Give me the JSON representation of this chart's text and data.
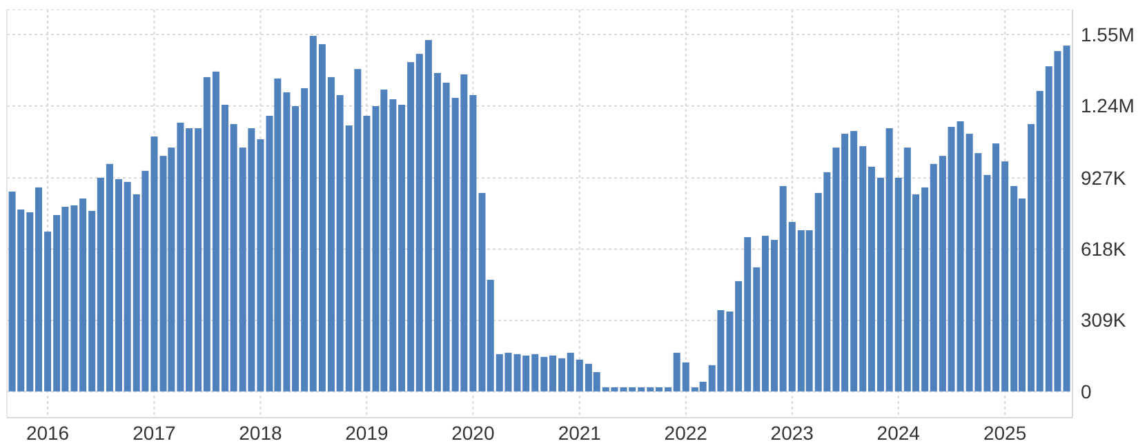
{
  "chart_data": {
    "type": "bar",
    "color": "#4f81bd",
    "x": [
      "2015-09",
      "2015-10",
      "2015-11",
      "2015-12",
      "2016-01",
      "2016-02",
      "2016-03",
      "2016-04",
      "2016-05",
      "2016-06",
      "2016-07",
      "2016-08",
      "2016-09",
      "2016-10",
      "2016-11",
      "2016-12",
      "2017-01",
      "2017-02",
      "2017-03",
      "2017-04",
      "2017-05",
      "2017-06",
      "2017-07",
      "2017-08",
      "2017-09",
      "2017-10",
      "2017-11",
      "2017-12",
      "2018-01",
      "2018-02",
      "2018-03",
      "2018-04",
      "2018-05",
      "2018-06",
      "2018-07",
      "2018-08",
      "2018-09",
      "2018-10",
      "2018-11",
      "2018-12",
      "2019-01",
      "2019-02",
      "2019-03",
      "2019-04",
      "2019-05",
      "2019-06",
      "2019-07",
      "2019-08",
      "2019-09",
      "2019-10",
      "2019-11",
      "2019-12",
      "2020-01",
      "2020-02",
      "2020-03",
      "2020-04",
      "2020-05",
      "2020-06",
      "2020-07",
      "2020-08",
      "2020-09",
      "2020-10",
      "2020-11",
      "2020-12",
      "2021-01",
      "2021-02",
      "2021-03",
      "2021-04",
      "2021-05",
      "2021-06",
      "2021-07",
      "2021-08",
      "2021-09",
      "2021-10",
      "2021-11",
      "2021-12",
      "2022-01",
      "2022-02",
      "2022-03",
      "2022-04",
      "2022-05",
      "2022-06",
      "2022-07",
      "2022-08",
      "2022-09",
      "2022-10",
      "2022-11",
      "2022-12",
      "2023-01",
      "2023-02",
      "2023-03",
      "2023-04",
      "2023-05",
      "2023-06",
      "2023-07",
      "2023-08",
      "2023-09",
      "2023-10",
      "2023-11",
      "2023-12",
      "2024-01",
      "2024-02",
      "2024-03",
      "2024-04",
      "2024-05",
      "2024-06",
      "2024-07",
      "2024-08",
      "2024-09",
      "2024-10",
      "2024-11",
      "2024-12",
      "2025-01",
      "2025-02",
      "2025-03",
      "2025-04",
      "2025-05",
      "2025-06",
      "2025-07",
      "2025-08"
    ],
    "values": [
      868000,
      790000,
      778000,
      886000,
      694000,
      766000,
      802000,
      808000,
      838000,
      784000,
      928000,
      988000,
      922000,
      910000,
      856000,
      958000,
      1107000,
      1023000,
      1059000,
      1167000,
      1143000,
      1143000,
      1365000,
      1389000,
      1245000,
      1161000,
      1059000,
      1143000,
      1095000,
      1197000,
      1359000,
      1299000,
      1239000,
      1317000,
      1544000,
      1508000,
      1365000,
      1287000,
      1155000,
      1400000,
      1197000,
      1239000,
      1311000,
      1269000,
      1245000,
      1430000,
      1466000,
      1526000,
      1383000,
      1341000,
      1275000,
      1377000,
      1287000,
      862000,
      485000,
      162000,
      168000,
      162000,
      156000,
      162000,
      150000,
      156000,
      144000,
      168000,
      138000,
      120000,
      84000,
      18000,
      18000,
      18000,
      18000,
      18000,
      18000,
      18000,
      18000,
      168000,
      126000,
      18000,
      42000,
      114000,
      353000,
      347000,
      479000,
      670000,
      539000,
      676000,
      658000,
      892000,
      736000,
      700000,
      700000,
      862000,
      952000,
      1059000,
      1119000,
      1131000,
      1065000,
      976000,
      928000,
      1143000,
      928000,
      1059000,
      856000,
      886000,
      988000,
      1023000,
      1149000,
      1173000,
      1119000,
      1035000,
      940000,
      1077000,
      999000,
      892000,
      838000,
      1161000,
      1305000,
      1412000,
      1478000,
      1502000
    ],
    "xlim": [
      "2015-08-14",
      "2025-08-21"
    ],
    "xticks": [
      "2016",
      "2017",
      "2018",
      "2019",
      "2020",
      "2021",
      "2022",
      "2023",
      "2024",
      "2025"
    ],
    "ylim": [
      -114000,
      1658000
    ],
    "yticks": [
      0,
      {
        "value": 309000,
        "label": "309K"
      },
      {
        "value": 618000,
        "label": "618K"
      },
      {
        "value": 927000,
        "label": "927K"
      },
      {
        "value": 1240000,
        "label": "1.24M"
      },
      {
        "value": 1550000,
        "label": "1.55M"
      }
    ],
    "grid": true
  }
}
